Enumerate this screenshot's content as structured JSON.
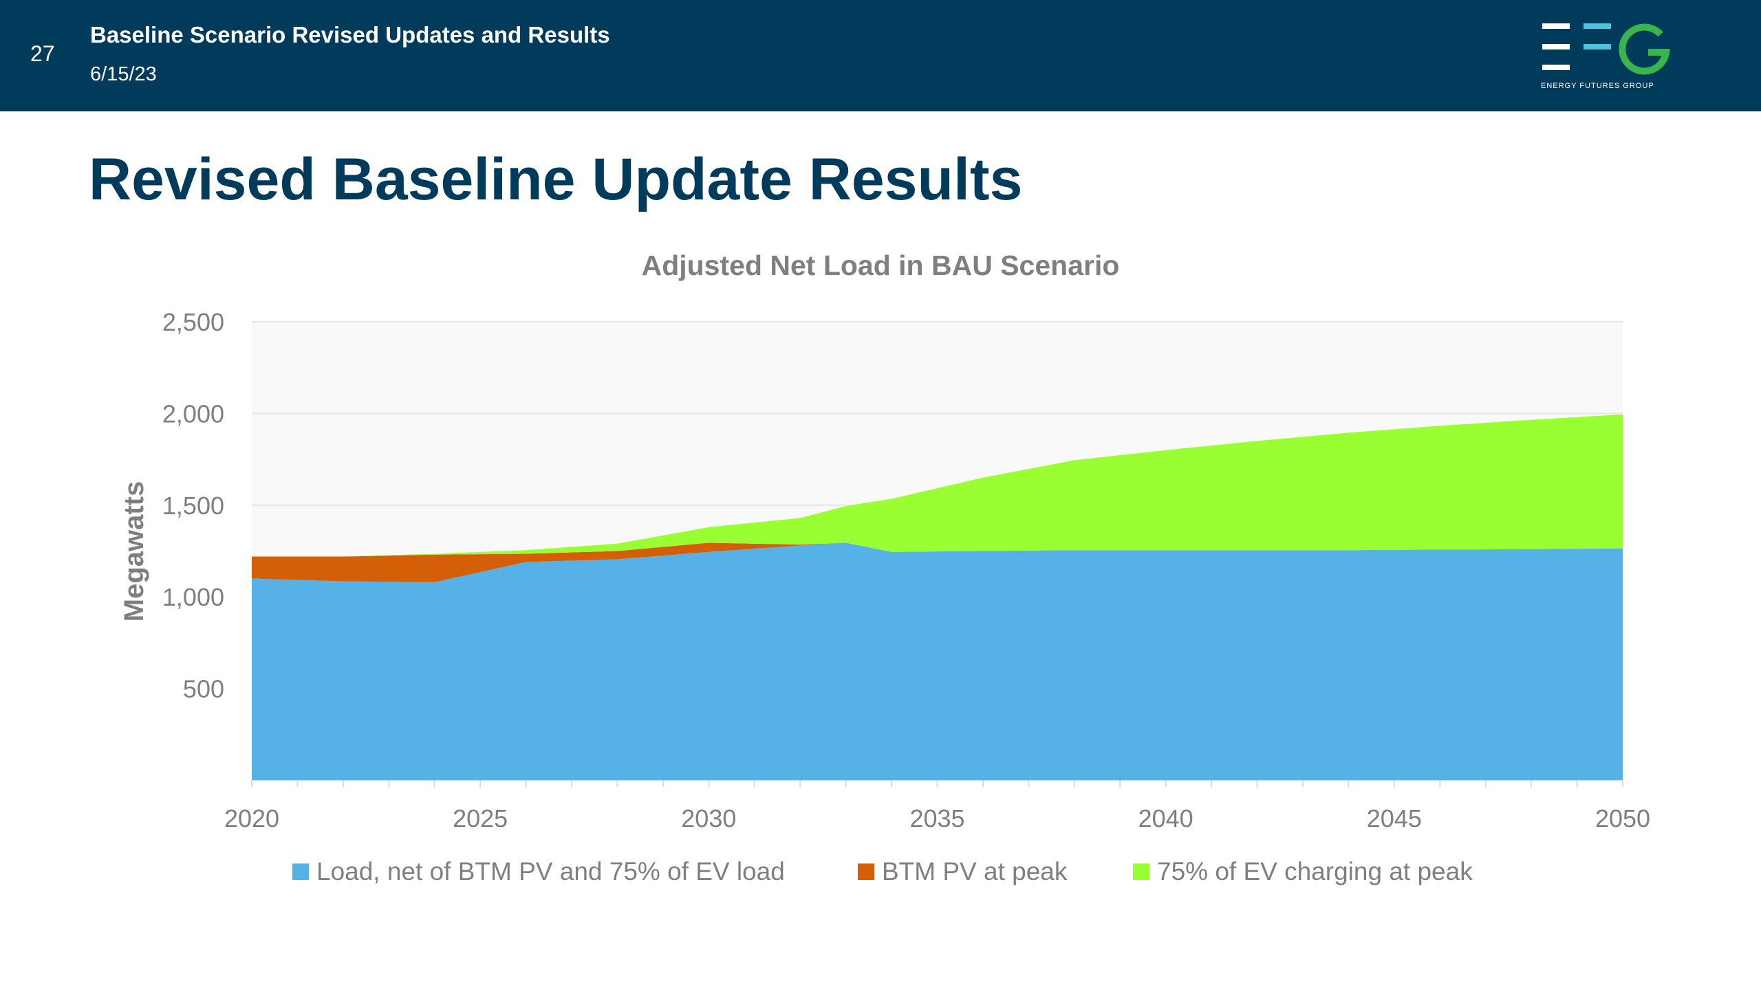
{
  "header": {
    "slide_number": "27",
    "title": "Baseline Scenario Revised Updates and Results",
    "date": "6/15/23",
    "logo_text": "ENERGY FUTURES GROUP"
  },
  "page_title": "Revised Baseline Update Results",
  "colors": {
    "header_bg": "#003b5c",
    "load": "#56b1e6",
    "btm_pv": "#d45f07",
    "ev": "#99ff33",
    "logo_green": "#39b54a",
    "logo_blue": "#4ec3e0"
  },
  "chart_data": {
    "type": "area",
    "stacked": true,
    "title": "Adjusted Net Load in BAU Scenario",
    "xlabel": "",
    "ylabel": "Megawatts",
    "xlim": [
      2020,
      2050
    ],
    "ylim": [
      0,
      2500
    ],
    "x_ticks": [
      "2020",
      "2025",
      "2030",
      "2035",
      "2040",
      "2045",
      "2050"
    ],
    "y_ticks": [
      "500",
      "1,000",
      "1,500",
      "2,000",
      "2,500"
    ],
    "grid": true,
    "legend_position": "bottom",
    "x": [
      2020,
      2022,
      2024,
      2026,
      2028,
      2030,
      2032,
      2033,
      2034,
      2036,
      2038,
      2040,
      2042,
      2044,
      2046,
      2048,
      2050
    ],
    "series": [
      {
        "name": "Load, net of BTM PV and 75% of EV load",
        "color": "#56b1e6",
        "values": [
          1100,
          1085,
          1080,
          1190,
          1205,
          1245,
          1280,
          1295,
          1245,
          1250,
          1255,
          1255,
          1255,
          1255,
          1258,
          1260,
          1265
        ]
      },
      {
        "name": "BTM PV at peak",
        "color": "#d45f07",
        "values": [
          120,
          135,
          150,
          45,
          45,
          50,
          5,
          0,
          0,
          0,
          0,
          0,
          0,
          0,
          0,
          0,
          0
        ]
      },
      {
        "name": "75% of EV charging at peak",
        "color": "#99ff33",
        "values": [
          0,
          0,
          5,
          20,
          40,
          85,
          145,
          200,
          290,
          400,
          490,
          545,
          595,
          640,
          675,
          705,
          730
        ]
      }
    ]
  }
}
